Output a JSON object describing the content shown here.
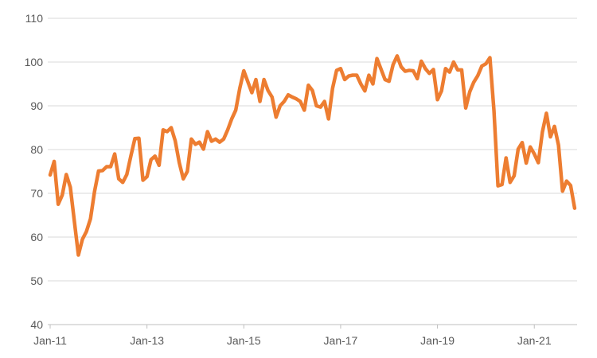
{
  "chart_data": {
    "type": "line",
    "title": "",
    "xlabel": "",
    "ylabel": "",
    "ylim": [
      40,
      110
    ],
    "y_ticks": [
      40,
      50,
      60,
      70,
      80,
      90,
      100,
      110
    ],
    "x_ticks": [
      "Jan-11",
      "Jan-13",
      "Jan-15",
      "Jan-17",
      "Jan-19",
      "Jan-21"
    ],
    "grid": "horizontal",
    "legend": "none",
    "line_color": "#ED7D31",
    "grid_color": "#D9D9D9",
    "series": [
      {
        "values": [
          74.2,
          77.3,
          67.5,
          69.6,
          74.3,
          71.4,
          63.6,
          55.9,
          59.5,
          61.3,
          64.2,
          70.4,
          75.1,
          75.2,
          76.1,
          76.1,
          79.0,
          73.3,
          72.5,
          74.3,
          78.5,
          82.5,
          82.6,
          73.0,
          73.8,
          77.7,
          78.5,
          76.4,
          84.5,
          84.1,
          85.0,
          82.0,
          77.0,
          73.3,
          75.0,
          82.4,
          81.2,
          81.7,
          80.1,
          84.1,
          81.9,
          82.4,
          81.7,
          82.4,
          84.5,
          87.0,
          89.0,
          94.0,
          98.0,
          95.5,
          93.0,
          96.0,
          91.0,
          96.0,
          93.5,
          92.0,
          87.4,
          90.0,
          91.0,
          92.5,
          92.0,
          91.6,
          91.0,
          89.0,
          94.7,
          93.5,
          90.0,
          89.7,
          91.0,
          87.0,
          94.0,
          98.1,
          98.5,
          96.0,
          96.8,
          97.0,
          97.0,
          95.0,
          93.4,
          97.0,
          95.0,
          100.8,
          98.4,
          96.0,
          95.6,
          99.4,
          101.4,
          98.9,
          97.9,
          98.1,
          98.0,
          96.2,
          100.2,
          98.5,
          97.4,
          98.3,
          91.4,
          93.4,
          98.5,
          97.7,
          100.0,
          98.2,
          98.2,
          89.5,
          93.2,
          95.4,
          96.9,
          99.1,
          99.6,
          101.0,
          88.9,
          71.7,
          72.0,
          78.1,
          72.5,
          74.0,
          80.1,
          81.6,
          76.9,
          80.6,
          79.0,
          77.0,
          84.0,
          88.3,
          82.9,
          85.3,
          81.0,
          70.5,
          72.8,
          71.8,
          66.6
        ]
      }
    ]
  }
}
